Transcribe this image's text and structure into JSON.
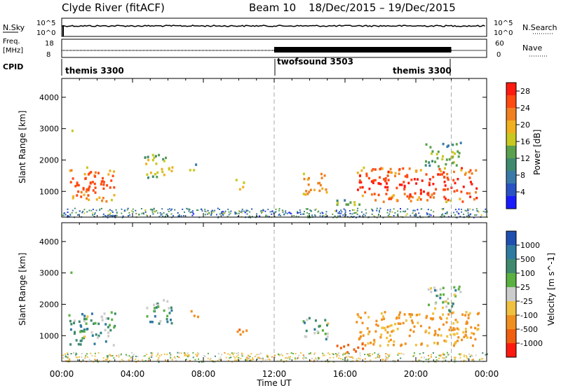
{
  "header": {
    "station": "Clyde River (fitACF)",
    "beam": "Beam 10",
    "dates": "18/Dec/2015 – 19/Dec/2015"
  },
  "strip_nsky": {
    "left_label": "N.Sky",
    "right_label": "N.Search",
    "left_ticks": [
      "10^5",
      "10^0"
    ],
    "right_ticks": [
      "10^5",
      "10^0"
    ]
  },
  "strip_freq": {
    "left_label_1": "Freq.",
    "left_label_2": "[MHz]",
    "right_label": "Nave",
    "left_ticks": [
      "18",
      "8"
    ],
    "right_ticks": [
      "60",
      "0"
    ]
  },
  "cpid": {
    "label": "CPID",
    "segments": [
      {
        "name": "themis 3300",
        "start_h": 0,
        "end_h": 12
      },
      {
        "name": "twofsound 3503",
        "start_h": 12,
        "end_h": 22
      },
      {
        "name": "themis 3300",
        "start_h": 22,
        "end_h": 24
      }
    ]
  },
  "x_axis": {
    "label": "Time UT",
    "ticks": [
      "00:00",
      "04:00",
      "08:00",
      "12:00",
      "16:00",
      "20:00",
      "00:00"
    ]
  },
  "power_panel": {
    "ylabel": "Slant Range [km]",
    "yticks": [
      "1000",
      "2000",
      "3000",
      "4000"
    ],
    "colorbar_label": "Power [dB]",
    "colorbar_ticks": [
      "4",
      "8",
      "12",
      "16",
      "20",
      "24",
      "28"
    ],
    "colors": [
      "#1a1aff",
      "#2952c4",
      "#3a7aa8",
      "#3f8a6f",
      "#5aa04d",
      "#c8c820",
      "#f0b020",
      "#f08020",
      "#ff4a10",
      "#ff1a10"
    ]
  },
  "velocity_panel": {
    "ylabel": "Slant Range [km]",
    "yticks": [
      "1000",
      "2000",
      "3000",
      "4000"
    ],
    "colorbar_label": "Velocity [m s^-1]",
    "colorbar_ticks": [
      "1000",
      "500",
      "100",
      "25",
      "-25",
      "-100",
      "-500",
      "-1000"
    ],
    "colors": [
      "#1f4fb0",
      "#2f7aa0",
      "#3f8a6f",
      "#5ab040",
      "#cccccc",
      "#f0c040",
      "#f09020",
      "#f06010",
      "#ff1a10"
    ]
  },
  "chart_data": {
    "type": "heatmap",
    "title": "Clyde River (fitACF) Beam 10 18/Dec/2015 – 19/Dec/2015",
    "xlabel": "Time UT",
    "ylabel": "Slant Range [km]",
    "xlim_hours": [
      0,
      24
    ],
    "ylim_km": [
      180,
      4600
    ],
    "grid": false,
    "scatter_regions": [
      {
        "t0": 0.3,
        "t1": 3.0,
        "r0": 700,
        "r1": 1800,
        "power_db": 27,
        "velocity": 60
      },
      {
        "t0": 0.4,
        "t1": 0.6,
        "r0": 2900,
        "r1": 3100,
        "power_db": 18,
        "velocity": 20
      },
      {
        "t0": 4.6,
        "t1": 6.2,
        "r0": 1400,
        "r1": 2200,
        "power_db": 19,
        "velocity": 70
      },
      {
        "t0": 7.2,
        "t1": 7.7,
        "r0": 1600,
        "r1": 1900,
        "power_db": 16,
        "velocity": -200
      },
      {
        "t0": 9.8,
        "t1": 10.4,
        "r0": 1000,
        "r1": 1400,
        "power_db": 20,
        "velocity": -300
      },
      {
        "t0": 13.6,
        "t1": 15.0,
        "r0": 900,
        "r1": 1600,
        "power_db": 24,
        "velocity": 50
      },
      {
        "t0": 16.6,
        "t1": 23.5,
        "r0": 700,
        "r1": 1800,
        "power_db": 28,
        "velocity": -120
      },
      {
        "t0": 20.5,
        "t1": 22.5,
        "r0": 1800,
        "r1": 2600,
        "power_db": 16,
        "velocity": 30
      },
      {
        "t0": 15.5,
        "t1": 17.0,
        "r0": 500,
        "r1": 800,
        "power_db": 16,
        "velocity": -500
      }
    ]
  }
}
